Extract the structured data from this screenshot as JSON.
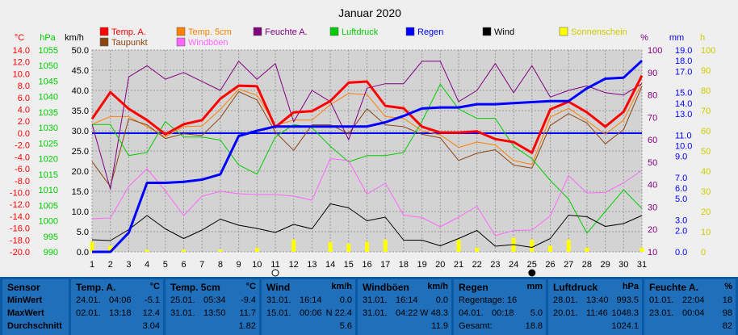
{
  "title": "Januar 2020",
  "legend": [
    {
      "label": "Temp. A.",
      "color": "#ff0000"
    },
    {
      "label": "Temp. 5cm",
      "color": "#ff8000"
    },
    {
      "label": "Feuchte A.",
      "color": "#800080"
    },
    {
      "label": "Luftdruck",
      "color": "#00cc00"
    },
    {
      "label": "Regen",
      "color": "#0000ff"
    },
    {
      "label": "Wind",
      "color": "#000000"
    },
    {
      "label": "Sonnenschein",
      "color": "#ffff00"
    },
    {
      "label": "Taupunkt",
      "color": "#8b4513"
    },
    {
      "label": "Windböen",
      "color": "#ff66ff"
    }
  ],
  "axis_units": {
    "temp": "°C",
    "pressure": "hPa",
    "wind": "km/h",
    "humidity": "%",
    "rain": "mm",
    "sun": "h"
  },
  "chart_data": {
    "type": "line",
    "title": "Januar 2020",
    "x": [
      1,
      2,
      3,
      4,
      5,
      6,
      7,
      8,
      9,
      10,
      11,
      12,
      13,
      14,
      15,
      16,
      17,
      18,
      19,
      20,
      21,
      22,
      23,
      24,
      25,
      26,
      27,
      28,
      29,
      30,
      31
    ],
    "x_markers": {
      "11": "first-quarter",
      "25": "new-moon"
    },
    "axes": {
      "temp": {
        "label": "°C",
        "ticks": [
          "14.0",
          "12.0",
          "10.0",
          "8.0",
          "6.0",
          "4.0",
          "2.0",
          "0.0",
          "-2.0",
          "-4.0",
          "-6.0",
          "-8.0",
          "-10.0",
          "-12.0",
          "-14.0",
          "-16.0",
          "-18.0",
          "-20.0"
        ],
        "ylim": [
          -20,
          14
        ],
        "color": "#ff0000"
      },
      "pressure": {
        "label": "hPa",
        "ticks": [
          "1055",
          "1050",
          "1045",
          "1040",
          "1035",
          "1030",
          "1025",
          "1020",
          "1015",
          "1010",
          "1005",
          "1000",
          "995",
          "990"
        ],
        "ylim": [
          990,
          1055
        ],
        "color": "#00cc00"
      },
      "wind": {
        "label": "km/h",
        "ticks": [
          "50.0",
          "45.0",
          "40.0",
          "35.0",
          "30.0",
          "25.0",
          "20.0",
          "15.0",
          "10.0",
          "5.0",
          "0.0"
        ],
        "ylim": [
          0,
          50
        ],
        "color": "#000000"
      },
      "humidity": {
        "label": "%",
        "ticks": [
          "100",
          "90",
          "80",
          "70",
          "60",
          "50",
          "40",
          "30",
          "20",
          "10"
        ],
        "ylim": [
          10,
          100
        ],
        "color": "#800080"
      },
      "rain": {
        "label": "mm",
        "ticks": [
          "19.0",
          "18.0",
          "17.0",
          "15.0",
          "14.0",
          "13.0",
          "11.0",
          "10.0",
          "9.0",
          "7.0",
          "6.0",
          "5.0",
          "3.0",
          "2.0",
          "0.0"
        ],
        "tick_values": [
          19,
          18,
          17,
          15,
          14,
          13,
          11,
          10,
          9,
          7,
          6,
          5,
          3,
          2,
          0
        ],
        "ylim": [
          0,
          19
        ],
        "color": "#0000ff"
      },
      "sun": {
        "label": "h",
        "ticks": [
          "100",
          "90",
          "80",
          "70",
          "60",
          "50",
          "40",
          "30",
          "20",
          "10",
          "0"
        ],
        "ylim": [
          0,
          100
        ],
        "color": "#ffff00"
      }
    },
    "series": [
      {
        "name": "Temp. A.",
        "axis": "temp",
        "color": "#ff0000",
        "width": 3,
        "values": [
          2.4,
          6.9,
          4.1,
          2.2,
          -0.2,
          1.5,
          2.2,
          5.8,
          8.0,
          7.9,
          1.0,
          3.5,
          3.7,
          5.4,
          8.5,
          8.7,
          4.6,
          4.2,
          1.1,
          0.1,
          0.1,
          0.3,
          -1.0,
          -1.5,
          -3.3,
          4.0,
          5.3,
          3.5,
          1.1,
          3.6,
          9.7
        ]
      },
      {
        "name": "Temp. 5cm",
        "axis": "temp",
        "color": "#ff8000",
        "width": 1,
        "values": [
          1.5,
          2.8,
          2.8,
          1.1,
          -0.6,
          1.1,
          1.2,
          4.0,
          7.4,
          6.4,
          1.3,
          2.2,
          2.2,
          4.8,
          6.7,
          6.5,
          2.8,
          2.5,
          0.4,
          -0.3,
          -2.4,
          -1.5,
          -2.0,
          -4.6,
          -5.3,
          2.7,
          4.2,
          2.1,
          -0.2,
          2.2,
          8.5
        ]
      },
      {
        "name": "Taupunkt",
        "axis": "temp",
        "color": "#8b4513",
        "width": 1,
        "values": [
          -4.8,
          -9.0,
          2.4,
          1.4,
          -0.9,
          -0.1,
          -0.4,
          2.6,
          7.0,
          5.6,
          0.2,
          -2.9,
          1.4,
          1.4,
          -0.1,
          4.1,
          1.4,
          1.1,
          -0.2,
          -0.8,
          -4.6,
          -3.4,
          -2.8,
          -5.4,
          -5.9,
          1.3,
          3.3,
          1.7,
          -1.8,
          0.6,
          7.9
        ]
      },
      {
        "name": "Feuchte A.",
        "axis": "humidity",
        "color": "#800080",
        "width": 1,
        "values": [
          67,
          38,
          88,
          93,
          87,
          90,
          86,
          82,
          95,
          87,
          94,
          68,
          82,
          77,
          60,
          83,
          85,
          85,
          95,
          95,
          77,
          82,
          94,
          81,
          93,
          79,
          82,
          84,
          81,
          80,
          85
        ]
      },
      {
        "name": "Luftdruck",
        "axis": "pressure",
        "color": "#00cc00",
        "width": 1,
        "values": [
          1031,
          1031,
          1021,
          1022,
          1032,
          1027,
          1027,
          1026,
          1018,
          1015,
          1027,
          1031,
          1030,
          1024,
          1019,
          1021,
          1021,
          1022,
          1032,
          1044,
          1036,
          1033,
          1033,
          1024,
          1020,
          1013,
          1007,
          996,
          1003,
          1010,
          1004
        ]
      },
      {
        "name": "Wind",
        "axis": "wind",
        "color": "#000000",
        "width": 1,
        "values": [
          3.0,
          2.8,
          5.5,
          9.0,
          5.7,
          3.3,
          5.4,
          8.1,
          6.6,
          5.8,
          4.8,
          6.8,
          5.7,
          11.9,
          10.9,
          7.7,
          8.6,
          2.9,
          2.9,
          1.5,
          3.3,
          5.3,
          1.4,
          1.8,
          1.1,
          3.3,
          9.1,
          8.7,
          6.3,
          7.0,
          9.0
        ]
      },
      {
        "name": "Windböen",
        "axis": "wind",
        "color": "#ff66ff",
        "width": 1,
        "values": [
          8.2,
          8.4,
          16.2,
          20.6,
          15.1,
          9.0,
          13.8,
          15.0,
          14.4,
          14.2,
          14.2,
          13.8,
          12.8,
          23.1,
          22.6,
          14.3,
          17.0,
          9.1,
          8.5,
          6.2,
          8.6,
          11.3,
          4.0,
          5.3,
          5.4,
          8.9,
          18.9,
          14.6,
          14.7,
          17.1,
          20.2
        ]
      },
      {
        "name": "Regen",
        "axis": "rain",
        "color": "#0000ff",
        "width": 3,
        "values": [
          0.0,
          0.0,
          1.8,
          6.5,
          6.5,
          6.6,
          6.8,
          7.3,
          10.9,
          11.4,
          11.8,
          11.8,
          11.8,
          11.8,
          11.8,
          11.8,
          12.2,
          12.8,
          13.5,
          13.6,
          13.6,
          13.9,
          13.9,
          14.0,
          14.1,
          14.2,
          14.2,
          15.4,
          16.3,
          16.4,
          18.0
        ]
      },
      {
        "name": "Sonnenschein",
        "axis": "sun",
        "color": "#ffff00",
        "type": "bar",
        "values": [
          5,
          3,
          0,
          1,
          0,
          1,
          0,
          1,
          0,
          2,
          0,
          6,
          0,
          5,
          4,
          5,
          6,
          0,
          0,
          0,
          6,
          2,
          0,
          7,
          6,
          3,
          6,
          2,
          0,
          0,
          2
        ]
      }
    ],
    "grid": true
  },
  "stats": {
    "sensor": {
      "title": "Sensor",
      "min": "MinWert",
      "max": "MaxWert",
      "avg": "Durchschnitt"
    },
    "temp_a": {
      "title": "Temp. A.",
      "unit": "°C",
      "min_date": "24.01.",
      "min_time": "04:06",
      "min_val": "-5.1",
      "max_date": "02.01.",
      "max_time": "13:18",
      "max_val": "12.4",
      "avg": "3.04"
    },
    "temp_5": {
      "title": "Temp. 5cm",
      "unit": "°C",
      "min_date": "25.01.",
      "min_time": "05:34",
      "min_val": "-9.4",
      "max_date": "31.01.",
      "max_time": "13:50",
      "max_val": "11.7",
      "avg": "1.82"
    },
    "wind": {
      "title": "Wind",
      "unit": "km/h",
      "min_date": "31.01.",
      "min_time": "16:14",
      "min_val": "0.0",
      "max_date": "15.01.",
      "max_time": "00:06",
      "max_val": "N 22.4",
      "avg": "5.6"
    },
    "gust": {
      "title": "Windböen",
      "unit": "km/h",
      "min_date": "31.01.",
      "min_time": "16:14",
      "min_val": "0.0",
      "max_date": "31.01.",
      "max_time": "04:22",
      "max_val": "W 48.3",
      "avg": "11.9"
    },
    "rain": {
      "title": "Regen",
      "unit": "mm",
      "r1": "Regentage: 16",
      "r2_date": "04.01.",
      "r2_time": "00:18",
      "r2_val": "5.0",
      "r3": "Gesamt:",
      "r3_val": "18.8"
    },
    "pressure": {
      "title": "Luftdruck",
      "unit": "hPa",
      "min_date": "28.01.",
      "min_time": "13:40",
      "min_val": "993.5",
      "max_date": "20.01.",
      "max_time": "11:46",
      "max_val": "1048.3",
      "avg": "1024.1"
    },
    "humidity": {
      "title": "Feuchte A.",
      "unit": "%",
      "min_date": "01.01.",
      "min_time": "22:04",
      "min_val": "18",
      "max_date": "23.01.",
      "max_time": "00:04",
      "max_val": "98",
      "avg": "82"
    }
  }
}
